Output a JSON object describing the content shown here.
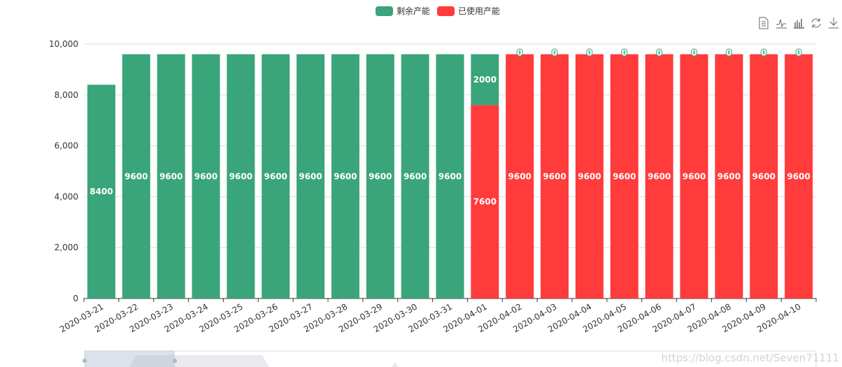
{
  "legend": [
    {
      "name": "剩余产能",
      "color": "#3aa47b"
    },
    {
      "name": "已使用产能",
      "color": "#ff3b3b"
    }
  ],
  "toolbox": [
    "data-view-icon",
    "line-chart-icon",
    "bar-chart-icon",
    "restore-icon",
    "save-image-icon"
  ],
  "watermark": "https://blog.csdn.net/Seven71111",
  "chart_data": {
    "type": "bar",
    "stacked": true,
    "categories": [
      "2020-03-21",
      "2020-03-22",
      "2020-03-23",
      "2020-03-24",
      "2020-03-25",
      "2020-03-26",
      "2020-03-27",
      "2020-03-28",
      "2020-03-29",
      "2020-03-30",
      "2020-03-31",
      "2020-04-01",
      "2020-04-02",
      "2020-04-03",
      "2020-04-04",
      "2020-04-05",
      "2020-04-06",
      "2020-04-07",
      "2020-04-08",
      "2020-04-09",
      "2020-04-10"
    ],
    "series": [
      {
        "name": "已使用产能",
        "color": "#ff3b3b",
        "values": [
          0,
          0,
          0,
          0,
          0,
          0,
          0,
          0,
          0,
          0,
          0,
          7600,
          9600,
          9600,
          9600,
          9600,
          9600,
          9600,
          9600,
          9600,
          9600
        ]
      },
      {
        "name": "剩余产能",
        "color": "#3aa47b",
        "values": [
          8400,
          9600,
          9600,
          9600,
          9600,
          9600,
          9600,
          9600,
          9600,
          9600,
          9600,
          2000,
          0,
          0,
          0,
          0,
          0,
          0,
          0,
          0,
          0
        ]
      }
    ],
    "yticks": [
      "0",
      "2,000",
      "4,000",
      "6,000",
      "8,000",
      "10,000"
    ],
    "ylim": [
      0,
      10000
    ],
    "grid": true,
    "legend_position": "top"
  }
}
